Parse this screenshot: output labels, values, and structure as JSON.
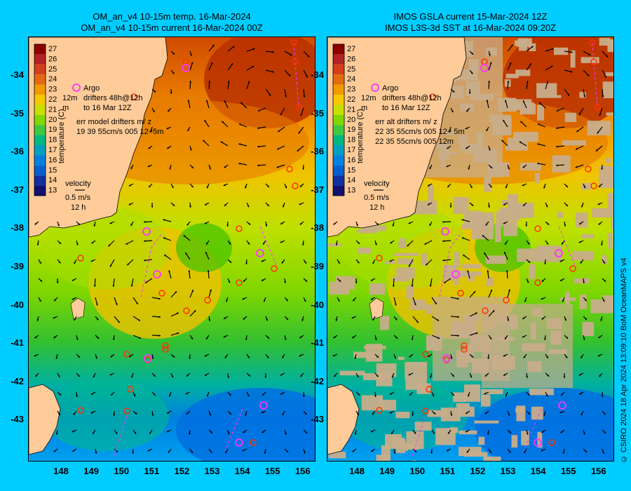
{
  "panels": [
    {
      "id": "left",
      "title_line1": "OM_an_v4  10-15m temp. 16-Mar-2024",
      "title_line2": "OM_an_v4  10-15m current 16-Mar-2024 00Z",
      "legend": {
        "argo": "Argo",
        "drifters_line1": "drifters 48h@12h",
        "drifters_line2": "to 16 Mar 12Z",
        "depth_label": "12m",
        "depth_unit": "m",
        "err_line1": "err model drifters m/ z",
        "err_line2": "19 39 55cm/s 005 12+5m",
        "err_line3": ""
      },
      "style": "model"
    },
    {
      "id": "right",
      "title_line1": "IMOS GSLA current 15-Mar-2024 12Z",
      "title_line2": "IMOS L3S-3d SST at 16-Mar-2024 09:20Z",
      "legend": {
        "argo": "Argo",
        "drifters_line1": "drifters 48h@12h",
        "drifters_line2": "to 16 Mar 12Z",
        "depth_label": "12m",
        "depth_unit": "m",
        "err_line1": "err alt drifters m/ z",
        "err_line2": "22 35 55cm/s 005 12+ 5m",
        "err_line3": "22 35 55cm/s 005 12m"
      },
      "style": "satellite"
    }
  ],
  "colorbar": {
    "label": "temperature (C)",
    "ticks": [
      "27",
      "26",
      "25",
      "24",
      "23",
      "22",
      "21",
      "20",
      "19",
      "18",
      "17",
      "16",
      "15",
      "14",
      "13"
    ]
  },
  "velocity_legend": {
    "title": "velocity",
    "speed": "0.5 m/s",
    "time": "12 h"
  },
  "lat_labels": [
    "-34",
    "-35",
    "-36",
    "-37",
    "-38",
    "-39",
    "-40",
    "-41",
    "-42",
    "-43"
  ],
  "lon_labels": [
    "148",
    "149",
    "150",
    "151",
    "152",
    "153",
    "154",
    "155",
    "156"
  ],
  "side_credit": "© CSIRO 2024   18 Apr 2024 13:09:10 BoM OceanMAPS v4",
  "colors": {
    "background": "#00ccff",
    "land": "#ffcc99",
    "cloud": "#c8ad8a",
    "argo": "#ff33ff",
    "drifter": "#ff3300"
  }
}
